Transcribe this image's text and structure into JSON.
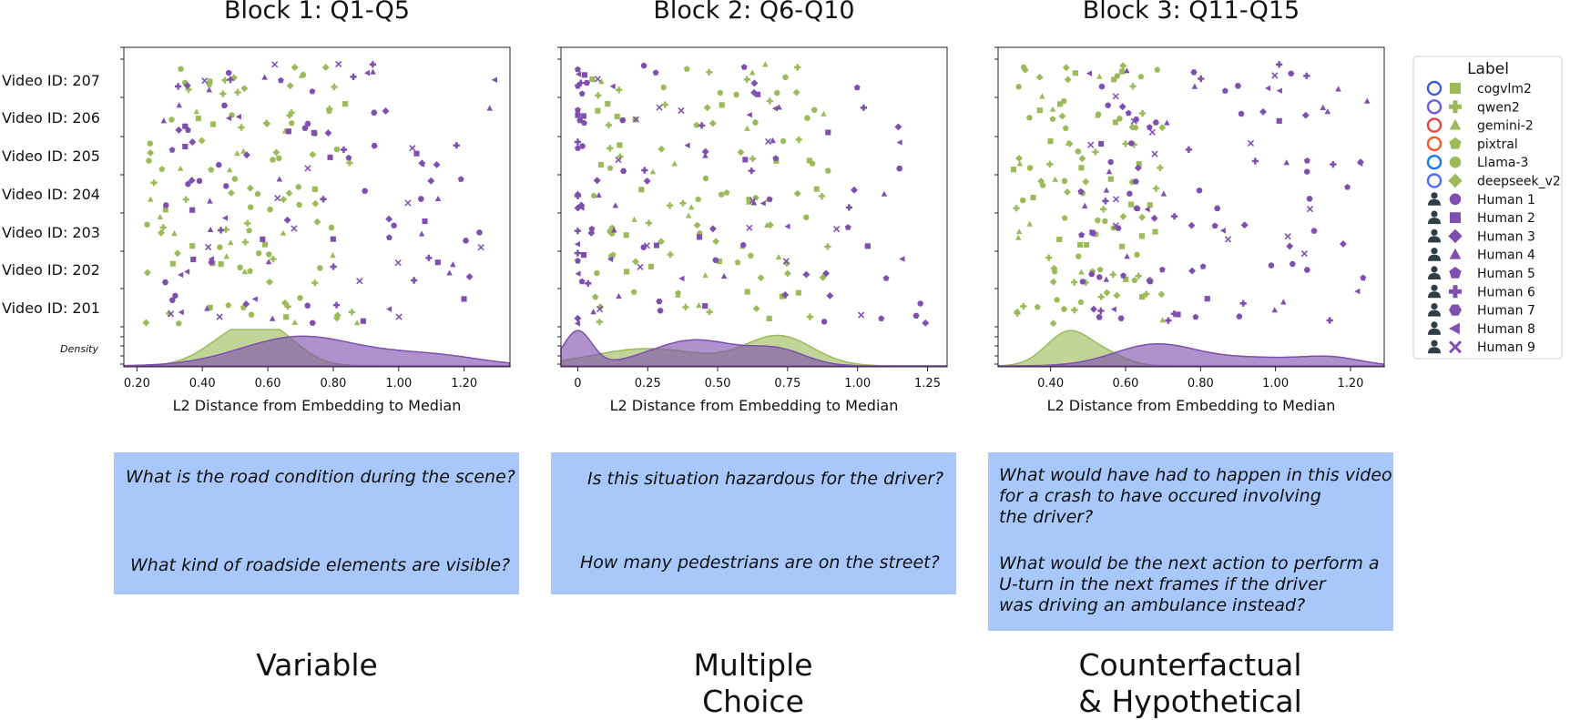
{
  "colors": {
    "model": "#9bbb59",
    "human": "#7e4fae",
    "box": "#a8c8fb"
  },
  "chart_data": {
    "type": "scatter",
    "x_label": "L2 Distance from Embedding to Median",
    "y_categories": [
      "Video ID: 207",
      "Video ID: 206",
      "Video ID: 205",
      "Video ID: 204",
      "Video ID: 203",
      "Video ID: 202",
      "Video ID: 201"
    ],
    "density_label": "Density",
    "legend": {
      "title": "Label",
      "entries": [
        {
          "name": "cogvlm2",
          "group": "model",
          "marker": "square",
          "icon": "cogvlm-icon"
        },
        {
          "name": "qwen2",
          "group": "model",
          "marker": "plus",
          "icon": "qwen-icon"
        },
        {
          "name": "gemini-2",
          "group": "model",
          "marker": "triangle",
          "icon": "google-icon"
        },
        {
          "name": "pixtral",
          "group": "model",
          "marker": "pentagon",
          "icon": "mistral-icon"
        },
        {
          "name": "Llama-3",
          "group": "model",
          "marker": "circle",
          "icon": "meta-icon"
        },
        {
          "name": "deepseek_v2",
          "group": "model",
          "marker": "diamond",
          "icon": "deepseek-icon"
        },
        {
          "name": "Human 1",
          "group": "human",
          "marker": "circle",
          "icon": "person-icon"
        },
        {
          "name": "Human 2",
          "group": "human",
          "marker": "square",
          "icon": "person-icon"
        },
        {
          "name": "Human 3",
          "group": "human",
          "marker": "diamond",
          "icon": "person-icon"
        },
        {
          "name": "Human 4",
          "group": "human",
          "marker": "triangle",
          "icon": "person-icon"
        },
        {
          "name": "Human 5",
          "group": "human",
          "marker": "pentagon",
          "icon": "person-icon"
        },
        {
          "name": "Human 6",
          "group": "human",
          "marker": "plus",
          "icon": "person-icon"
        },
        {
          "name": "Human 7",
          "group": "human",
          "marker": "hexagon",
          "icon": "person-icon"
        },
        {
          "name": "Human 8",
          "group": "human",
          "marker": "triangle-left",
          "icon": "person-icon"
        },
        {
          "name": "Human 9",
          "group": "human",
          "marker": "x",
          "icon": "person-icon"
        }
      ]
    },
    "panels": [
      {
        "title": "Block 1: Q1-Q5",
        "xlim": [
          0.16,
          1.34
        ],
        "xticks": [
          0.2,
          0.4,
          0.6,
          0.8,
          1.0,
          1.2
        ],
        "tick_labels": [
          "0.20",
          "0.40",
          "0.60",
          "0.80",
          "1.00",
          "1.20"
        ],
        "model_range": [
          0.22,
          0.88
        ],
        "human_range": [
          0.28,
          1.3
        ],
        "density": {
          "model": {
            "peaks": [
              [
                0.6,
                0.09,
                1.0
              ],
              [
                0.48,
                0.09,
                0.6
              ]
            ]
          },
          "human": {
            "peaks": [
              [
                0.7,
                0.18,
                0.85
              ],
              [
                1.1,
                0.15,
                0.3
              ]
            ]
          }
        }
      },
      {
        "title": "Block 2: Q6-Q10",
        "xlim": [
          -0.06,
          1.32
        ],
        "xticks": [
          0,
          0.25,
          0.5,
          0.75,
          1.0,
          1.25
        ],
        "tick_labels": [
          "0",
          "0.25",
          "0.50",
          "0.75",
          "1.00",
          "1.25"
        ],
        "model_range": [
          0.05,
          0.92
        ],
        "human_range": [
          0.0,
          1.25
        ],
        "density": {
          "model": {
            "peaks": [
              [
                0.72,
                0.12,
                0.85
              ],
              [
                0.25,
                0.2,
                0.5
              ]
            ]
          },
          "human": {
            "peaks": [
              [
                0.0,
                0.05,
                1.0
              ],
              [
                0.42,
                0.16,
                0.75
              ],
              [
                0.72,
                0.1,
                0.4
              ]
            ]
          }
        }
      },
      {
        "title": "Block 3: Q11-Q15",
        "xlim": [
          0.26,
          1.29
        ],
        "xticks": [
          0.4,
          0.6,
          0.8,
          1.0,
          1.2
        ],
        "tick_labels": [
          "0.40",
          "0.60",
          "0.80",
          "1.00",
          "1.20"
        ],
        "model_range": [
          0.3,
          0.7
        ],
        "human_range": [
          0.48,
          1.26
        ],
        "density": {
          "model": {
            "peaks": [
              [
                0.45,
                0.06,
                1.0
              ],
              [
                0.56,
                0.05,
                0.25
              ]
            ]
          },
          "human": {
            "peaks": [
              [
                0.68,
                0.11,
                0.62
              ],
              [
                1.15,
                0.08,
                0.22
              ],
              [
                0.95,
                0.12,
                0.22
              ]
            ]
          }
        }
      }
    ]
  },
  "questions": [
    {
      "q1": "What is the road condition during the scene?",
      "q2": "What kind of roadside elements are visible?"
    },
    {
      "q1": "Is this situation hazardous for the driver?",
      "q2": "How many pedestrians are on the street?"
    },
    {
      "q1": "What would have had to happen in this video\nfor a crash to have occured involving\nthe driver?",
      "q2": "What would be the next action to perform a\nU-turn in the next frames if the driver\nwas driving an ambulance instead?"
    }
  ],
  "categories": [
    "Variable",
    "Multiple\nChoice",
    "Counterfactual\n& Hypothetical"
  ]
}
